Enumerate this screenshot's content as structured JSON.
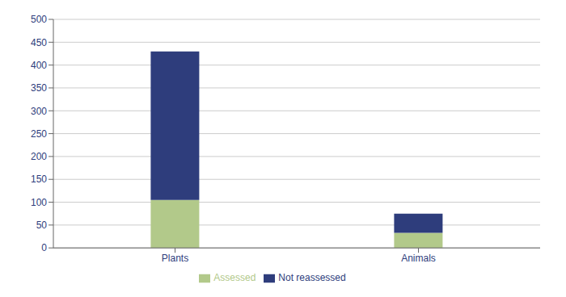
{
  "chart_data": {
    "type": "bar",
    "stacked": true,
    "categories": [
      "Plants",
      "Animals"
    ],
    "series": [
      {
        "name": "Assessed",
        "color": "#b2c98a",
        "values": [
          105,
          33
        ]
      },
      {
        "name": "Not reassessed",
        "color": "#2e3d7c",
        "values": [
          325,
          42
        ]
      }
    ],
    "ylim": [
      0,
      500
    ],
    "yticks": [
      0,
      50,
      100,
      150,
      200,
      250,
      300,
      350,
      400,
      450,
      500
    ],
    "grid": true,
    "legend": "bottom"
  }
}
